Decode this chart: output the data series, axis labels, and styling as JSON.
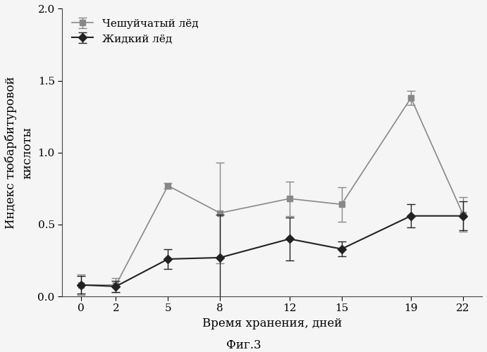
{
  "x": [
    0,
    2,
    5,
    8,
    12,
    15,
    19,
    22
  ],
  "flaky_ice_y": [
    0.08,
    0.08,
    0.77,
    0.58,
    0.68,
    0.64,
    1.38,
    0.57
  ],
  "flaky_ice_yerr": [
    0.07,
    0.05,
    0.02,
    0.35,
    0.12,
    0.12,
    0.05,
    0.12
  ],
  "liquid_ice_y": [
    0.08,
    0.07,
    0.26,
    0.27,
    0.4,
    0.33,
    0.56,
    0.56
  ],
  "liquid_ice_yerr": [
    0.06,
    0.04,
    0.07,
    0.3,
    0.15,
    0.05,
    0.08,
    0.1
  ],
  "flaky_label": "Чешуйчатый лёд",
  "liquid_label": "Жидкий лёд",
  "xlabel": "Время хранения, дней",
  "ylabel": "Индекс тюбарбитуровой\nкислоты",
  "caption": "Фиг.3",
  "ylim": [
    0,
    2.0
  ],
  "yticks": [
    0.0,
    0.5,
    1.0,
    1.5,
    2.0
  ],
  "xticks": [
    0,
    2,
    5,
    8,
    12,
    15,
    19,
    22
  ],
  "flaky_color": "#888888",
  "liquid_color": "#222222",
  "bg_color": "#f5f5f5",
  "label_fontsize": 12,
  "legend_fontsize": 11,
  "tick_fontsize": 11,
  "caption_fontsize": 12
}
